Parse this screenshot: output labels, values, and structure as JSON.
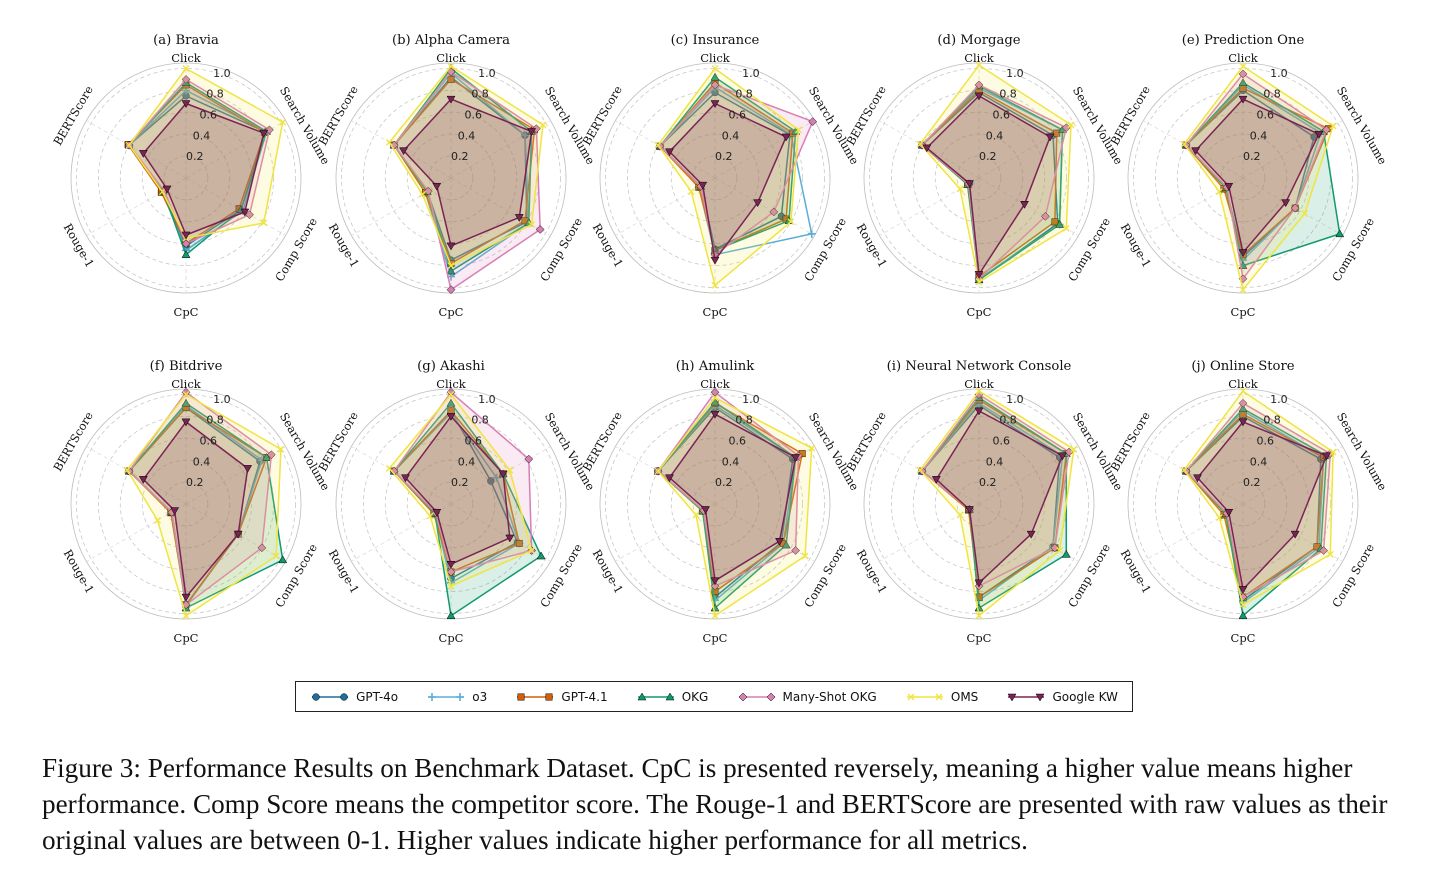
{
  "axes": [
    "Click",
    "Search Volume",
    "Comp Score",
    "CpC",
    "Rouge-1",
    "BERTScore"
  ],
  "rlabels": [
    "0.2",
    "0.4",
    "0.6",
    "0.8",
    "1.0"
  ],
  "series_styles": [
    {
      "name": "GPT-4o",
      "color": "#1f6f9e",
      "marker": "circle",
      "fill": false
    },
    {
      "name": "o3",
      "color": "#5aaed6",
      "marker": "plus",
      "fill": false
    },
    {
      "name": "GPT-4.1",
      "color": "#d35f0b",
      "marker": "square",
      "fill": true
    },
    {
      "name": "OKG",
      "color": "#119a6e",
      "marker": "triangle",
      "fill": true
    },
    {
      "name": "Many-Shot OKG",
      "color": "#d77fb4",
      "marker": "diamond",
      "fill": true
    },
    {
      "name": "OMS",
      "color": "#f0e442",
      "marker": "x",
      "fill": true
    },
    {
      "name": "Google KW",
      "color": "#7b2355",
      "marker": "triangle-down",
      "fill": true
    }
  ],
  "chart_data": [
    {
      "type": "radar",
      "title": "(a) Bravia",
      "ylim": [
        0,
        1
      ],
      "series": [
        {
          "name": "GPT-4o",
          "values": [
            0.75,
            0.84,
            0.58,
            0.62,
            0.25,
            0.6
          ]
        },
        {
          "name": "o3",
          "values": [
            0.8,
            0.85,
            0.6,
            0.66,
            0.25,
            0.6
          ]
        },
        {
          "name": "GPT-4.1",
          "values": [
            0.85,
            0.83,
            0.56,
            0.6,
            0.26,
            0.61
          ]
        },
        {
          "name": "OKG",
          "values": [
            0.87,
            0.85,
            0.58,
            0.7,
            0.24,
            0.6
          ]
        },
        {
          "name": "Many-Shot OKG",
          "values": [
            0.9,
            0.88,
            0.67,
            0.6,
            0.23,
            0.6
          ]
        },
        {
          "name": "OMS",
          "values": [
            1.0,
            1.02,
            0.82,
            0.55,
            0.25,
            0.6
          ]
        },
        {
          "name": "Google KW",
          "values": [
            0.68,
            0.82,
            0.62,
            0.52,
            0.2,
            0.45
          ]
        }
      ]
    },
    {
      "type": "radar",
      "title": "(b) Alpha Camera",
      "ylim": [
        0,
        1
      ],
      "series": [
        {
          "name": "GPT-4o",
          "values": [
            0.92,
            0.78,
            0.8,
            0.75,
            0.25,
            0.6
          ]
        },
        {
          "name": "o3",
          "values": [
            0.96,
            0.78,
            0.82,
            0.9,
            0.27,
            0.6
          ]
        },
        {
          "name": "GPT-4.1",
          "values": [
            0.9,
            0.88,
            0.78,
            0.78,
            0.27,
            0.6
          ]
        },
        {
          "name": "OKG",
          "values": [
            1.0,
            0.85,
            0.82,
            0.85,
            0.25,
            0.6
          ]
        },
        {
          "name": "Many-Shot OKG",
          "values": [
            0.97,
            0.9,
            0.94,
            1.02,
            0.24,
            0.6
          ]
        },
        {
          "name": "OMS",
          "values": [
            1.02,
            0.97,
            0.85,
            0.8,
            0.3,
            0.65
          ]
        },
        {
          "name": "Google KW",
          "values": [
            0.72,
            0.85,
            0.72,
            0.62,
            0.15,
            0.5
          ]
        }
      ]
    },
    {
      "type": "radar",
      "title": "(c) Insurance",
      "ylim": [
        0,
        1
      ],
      "series": [
        {
          "name": "GPT-4o",
          "values": [
            0.78,
            0.79,
            0.7,
            0.65,
            0.15,
            0.58
          ]
        },
        {
          "name": "o3",
          "values": [
            0.83,
            0.8,
            1.02,
            0.7,
            0.17,
            0.58
          ]
        },
        {
          "name": "GPT-4.1",
          "values": [
            0.87,
            0.82,
            0.75,
            0.66,
            0.17,
            0.58
          ]
        },
        {
          "name": "OKG",
          "values": [
            0.92,
            0.85,
            0.78,
            0.66,
            0.15,
            0.58
          ]
        },
        {
          "name": "Many-Shot OKG",
          "values": [
            0.85,
            1.03,
            0.62,
            0.7,
            0.15,
            0.58
          ]
        },
        {
          "name": "OMS",
          "values": [
            1.0,
            0.88,
            0.8,
            0.98,
            0.25,
            0.6
          ]
        },
        {
          "name": "Google KW",
          "values": [
            0.68,
            0.75,
            0.45,
            0.75,
            0.13,
            0.48
          ]
        }
      ]
    },
    {
      "type": "radar",
      "title": "(d) Morgage",
      "ylim": [
        0,
        1
      ],
      "series": [
        {
          "name": "GPT-4o",
          "values": [
            0.78,
            0.78,
            0.83,
            0.93,
            0.1,
            0.6
          ]
        },
        {
          "name": "o3",
          "values": [
            0.82,
            0.88,
            0.85,
            0.92,
            0.1,
            0.6
          ]
        },
        {
          "name": "GPT-4.1",
          "values": [
            0.8,
            0.82,
            0.8,
            0.9,
            0.12,
            0.6
          ]
        },
        {
          "name": "OKG",
          "values": [
            0.84,
            0.88,
            0.85,
            0.93,
            0.12,
            0.6
          ]
        },
        {
          "name": "Many-Shot OKG",
          "values": [
            0.85,
            0.92,
            0.7,
            0.92,
            0.11,
            0.6
          ]
        },
        {
          "name": "OMS",
          "values": [
            1.03,
            0.97,
            0.92,
            0.95,
            0.2,
            0.62
          ]
        },
        {
          "name": "Google KW",
          "values": [
            0.75,
            0.75,
            0.48,
            0.88,
            0.1,
            0.55
          ]
        }
      ]
    },
    {
      "type": "radar",
      "title": "(e) Prediction One",
      "ylim": [
        0,
        1
      ],
      "series": [
        {
          "name": "GPT-4o",
          "values": [
            0.8,
            0.75,
            0.55,
            0.72,
            0.18,
            0.6
          ]
        },
        {
          "name": "o3",
          "values": [
            0.85,
            0.82,
            0.55,
            0.75,
            0.18,
            0.6
          ]
        },
        {
          "name": "GPT-4.1",
          "values": [
            0.82,
            0.9,
            0.55,
            0.7,
            0.2,
            0.6
          ]
        },
        {
          "name": "OKG",
          "values": [
            0.87,
            0.85,
            1.02,
            0.8,
            0.18,
            0.6
          ]
        },
        {
          "name": "Many-Shot OKG",
          "values": [
            0.95,
            0.88,
            0.55,
            0.92,
            0.17,
            0.6
          ]
        },
        {
          "name": "OMS",
          "values": [
            1.02,
            0.95,
            0.65,
            1.02,
            0.25,
            0.62
          ]
        },
        {
          "name": "Google KW",
          "values": [
            0.72,
            0.8,
            0.45,
            0.68,
            0.15,
            0.5
          ]
        }
      ]
    },
    {
      "type": "radar",
      "title": "(f) Bitdrive",
      "ylim": [
        0,
        1
      ],
      "series": [
        {
          "name": "GPT-4o",
          "values": [
            0.88,
            0.78,
            0.55,
            0.92,
            0.15,
            0.6
          ]
        },
        {
          "name": "o3",
          "values": [
            0.9,
            0.8,
            0.55,
            0.93,
            0.15,
            0.6
          ]
        },
        {
          "name": "GPT-4.1",
          "values": [
            0.88,
            0.85,
            0.55,
            0.92,
            0.16,
            0.6
          ]
        },
        {
          "name": "OKG",
          "values": [
            0.92,
            0.85,
            1.02,
            0.95,
            0.15,
            0.6
          ]
        },
        {
          "name": "Many-Shot OKG",
          "values": [
            1.02,
            0.9,
            0.8,
            0.92,
            0.15,
            0.6
          ]
        },
        {
          "name": "OMS",
          "values": [
            1.0,
            1.0,
            0.95,
            1.02,
            0.3,
            0.62
          ]
        },
        {
          "name": "Google KW",
          "values": [
            0.75,
            0.65,
            0.55,
            0.85,
            0.12,
            0.45
          ]
        }
      ]
    },
    {
      "type": "radar",
      "title": "(g) Akashi",
      "ylim": [
        0,
        1
      ],
      "series": [
        {
          "name": "GPT-4o",
          "values": [
            0.85,
            0.42,
            0.7,
            0.68,
            0.17,
            0.6
          ]
        },
        {
          "name": "o3",
          "values": [
            0.83,
            0.48,
            0.72,
            0.72,
            0.17,
            0.6
          ]
        },
        {
          "name": "GPT-4.1",
          "values": [
            0.85,
            0.55,
            0.72,
            0.62,
            0.18,
            0.6
          ]
        },
        {
          "name": "OKG",
          "values": [
            0.92,
            0.55,
            0.95,
            1.02,
            0.17,
            0.6
          ]
        },
        {
          "name": "Many-Shot OKG",
          "values": [
            1.02,
            0.82,
            0.85,
            0.62,
            0.16,
            0.6
          ]
        },
        {
          "name": "OMS",
          "values": [
            1.0,
            0.62,
            0.85,
            0.75,
            0.22,
            0.65
          ]
        },
        {
          "name": "Google KW",
          "values": [
            0.8,
            0.55,
            0.62,
            0.55,
            0.15,
            0.48
          ]
        }
      ]
    },
    {
      "type": "radar",
      "title": "(h) Amulink",
      "ylim": [
        0,
        1
      ],
      "series": [
        {
          "name": "GPT-4o",
          "values": [
            0.88,
            0.82,
            0.7,
            0.85,
            0.12,
            0.6
          ]
        },
        {
          "name": "o3",
          "values": [
            0.9,
            0.85,
            0.72,
            0.88,
            0.13,
            0.6
          ]
        },
        {
          "name": "GPT-4.1",
          "values": [
            0.92,
            0.92,
            0.72,
            0.8,
            0.13,
            0.6
          ]
        },
        {
          "name": "OKG",
          "values": [
            0.93,
            0.85,
            0.75,
            0.95,
            0.13,
            0.6
          ]
        },
        {
          "name": "Many-Shot OKG",
          "values": [
            1.02,
            0.88,
            0.85,
            0.75,
            0.12,
            0.6
          ]
        },
        {
          "name": "OMS",
          "values": [
            0.97,
            1.02,
            0.95,
            1.02,
            0.2,
            0.6
          ]
        },
        {
          "name": "Google KW",
          "values": [
            0.82,
            0.85,
            0.68,
            0.7,
            0.1,
            0.48
          ]
        }
      ]
    },
    {
      "type": "radar",
      "title": "(i) Neural Network Console",
      "ylim": [
        0,
        1
      ],
      "series": [
        {
          "name": "GPT-4o",
          "values": [
            0.9,
            0.85,
            0.78,
            0.85,
            0.1,
            0.6
          ]
        },
        {
          "name": "o3",
          "values": [
            0.92,
            0.88,
            0.78,
            0.88,
            0.1,
            0.6
          ]
        },
        {
          "name": "GPT-4.1",
          "values": [
            0.95,
            0.92,
            0.8,
            0.85,
            0.11,
            0.6
          ]
        },
        {
          "name": "OKG",
          "values": [
            0.97,
            0.92,
            0.92,
            0.95,
            0.1,
            0.6
          ]
        },
        {
          "name": "Many-Shot OKG",
          "values": [
            1.0,
            0.95,
            0.8,
            0.75,
            0.1,
            0.6
          ]
        },
        {
          "name": "OMS",
          "values": [
            1.03,
            1.0,
            0.85,
            1.02,
            0.2,
            0.62
          ]
        },
        {
          "name": "Google KW",
          "values": [
            0.85,
            0.88,
            0.55,
            0.72,
            0.1,
            0.45
          ]
        }
      ]
    },
    {
      "type": "radar",
      "title": "(j) Online Store",
      "ylim": [
        0,
        1
      ],
      "series": [
        {
          "name": "GPT-4o",
          "values": [
            0.8,
            0.82,
            0.78,
            0.88,
            0.18,
            0.6
          ]
        },
        {
          "name": "o3",
          "values": [
            0.85,
            0.85,
            0.8,
            0.9,
            0.18,
            0.6
          ]
        },
        {
          "name": "GPT-4.1",
          "values": [
            0.82,
            0.85,
            0.78,
            0.85,
            0.2,
            0.6
          ]
        },
        {
          "name": "OKG",
          "values": [
            0.87,
            0.88,
            0.82,
            1.02,
            0.18,
            0.6
          ]
        },
        {
          "name": "Many-Shot OKG",
          "values": [
            0.92,
            0.92,
            0.85,
            0.85,
            0.17,
            0.6
          ]
        },
        {
          "name": "OMS",
          "values": [
            1.03,
            0.95,
            0.92,
            0.92,
            0.25,
            0.62
          ]
        },
        {
          "name": "Google KW",
          "values": [
            0.75,
            0.88,
            0.55,
            0.78,
            0.15,
            0.48
          ]
        }
      ]
    }
  ],
  "caption": "Figure 3: Performance Results on Benchmark Dataset. CpC is presented reversely, meaning a higher value means higher performance. Comp Score means the competitor score. The Rouge-1 and BERTScore are presented with raw values as their original values are between 0-1. Higher values indicate higher performance for all metrics."
}
